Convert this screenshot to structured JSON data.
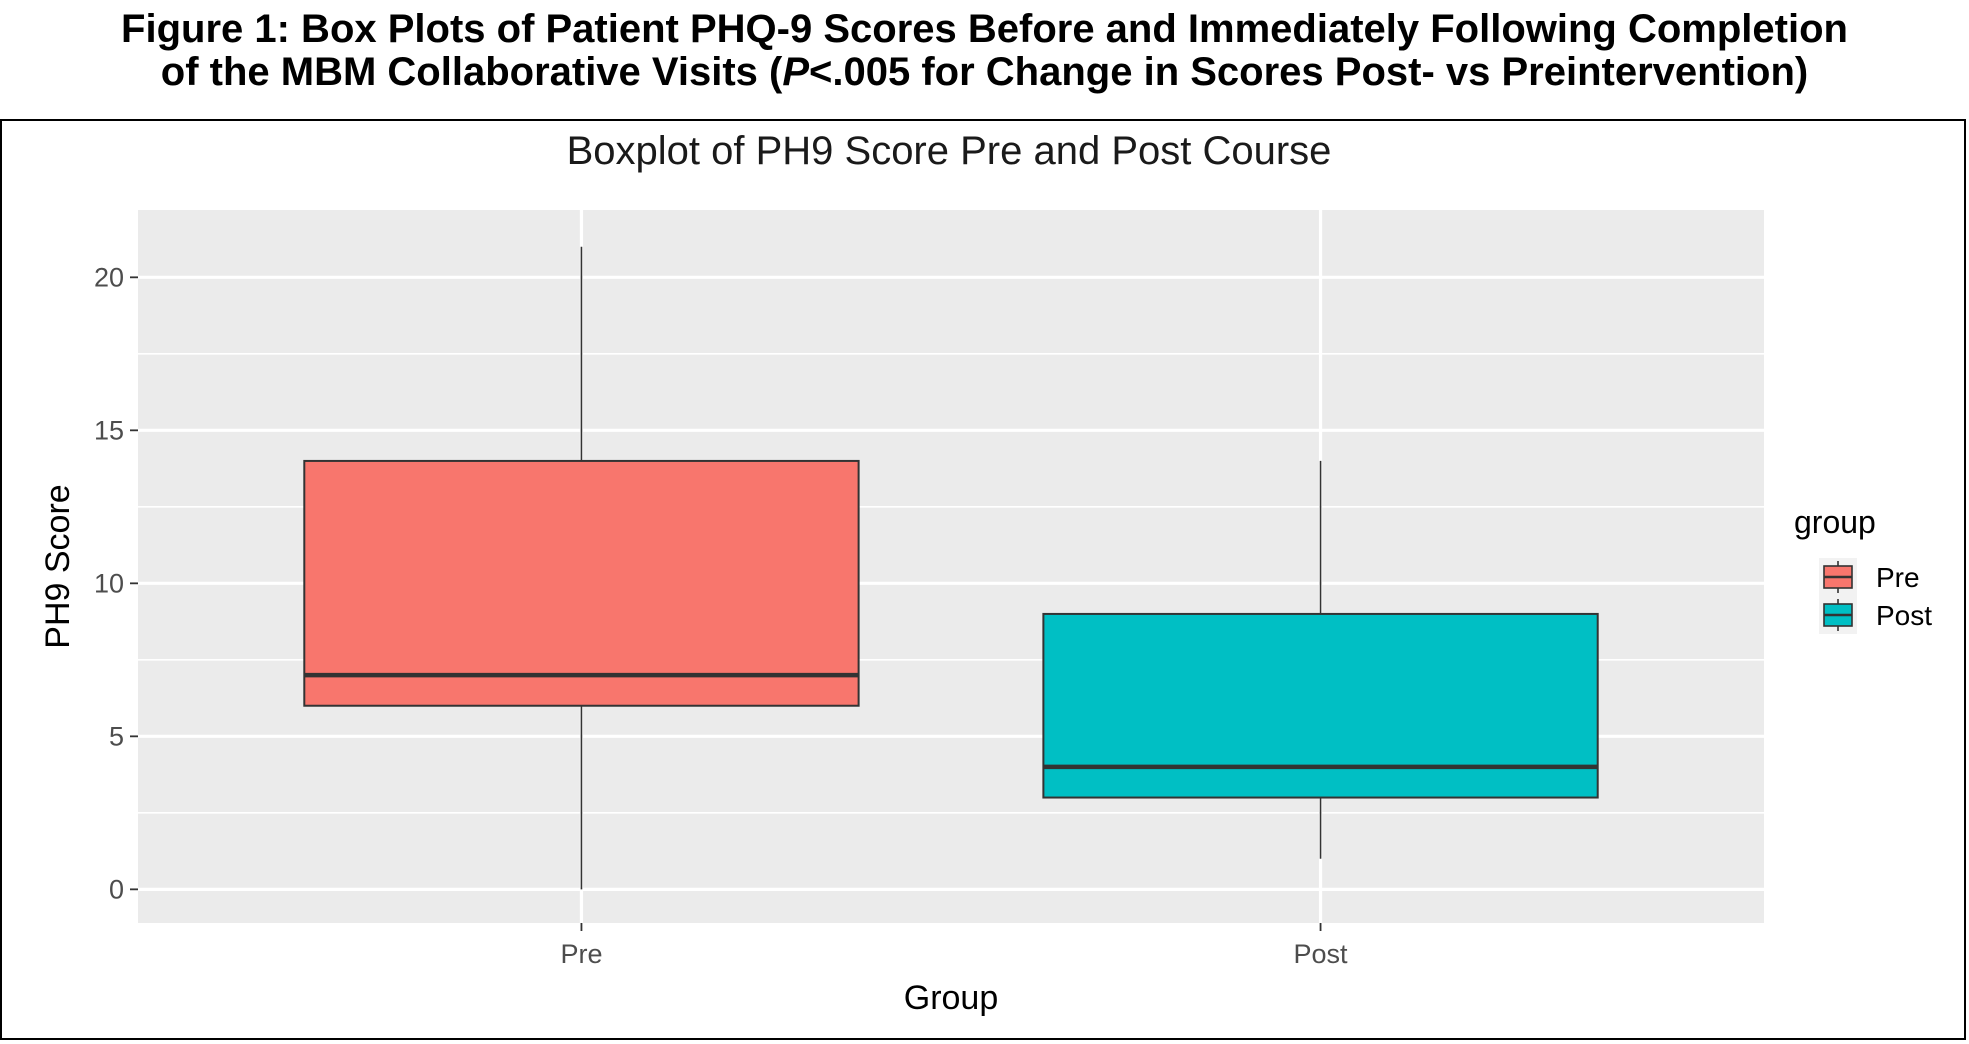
{
  "caption": {
    "line1": "Figure 1: Box Plots of Patient PHQ-9 Scores Before and Immediately Following Completion",
    "line2_before": "of the MBM Collaborative Visits (",
    "line2_italic": "P",
    "line2_after": "<.005 for Change in Scores Post- vs Preintervention)"
  },
  "chart_data": {
    "type": "boxplot",
    "title": "Boxplot of PH9 Score Pre and Post Course",
    "xlabel": "Group",
    "ylabel": "PH9 Score",
    "categories": [
      "Pre",
      "Post"
    ],
    "ylim": [
      -1.1,
      22.2
    ],
    "yticks": [
      0,
      5,
      10,
      15,
      20
    ],
    "grid": true,
    "legend": {
      "title": "group",
      "position": "right",
      "entries": [
        "Pre",
        "Post"
      ]
    },
    "series": [
      {
        "name": "Pre",
        "whisker_low": 0,
        "q1": 6,
        "median": 7,
        "q3": 14,
        "whisker_high": 21,
        "color": "#F8766D"
      },
      {
        "name": "Post",
        "whisker_low": 1,
        "q1": 3,
        "median": 4,
        "q3": 9,
        "whisker_high": 14,
        "color": "#00BFC4"
      }
    ],
    "colors": {
      "panel_background": "#EBEBEB",
      "grid": "#FFFFFF",
      "box_outline": "#333333"
    }
  }
}
